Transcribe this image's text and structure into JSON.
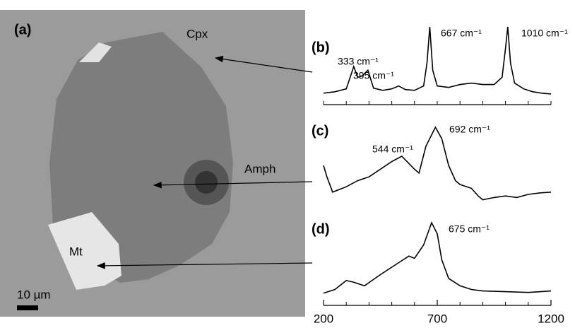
{
  "image": {
    "panel_label": "(a)",
    "labels": [
      "Cpx",
      "Amph",
      "Mt"
    ],
    "scale_bar": "10 µm"
  },
  "chart_data": [
    {
      "type": "line",
      "panel_label": "(b)",
      "xlim": [
        200,
        1200
      ],
      "ylim": [
        0,
        100
      ],
      "x": [
        200,
        250,
        300,
        333,
        350,
        370,
        395,
        420,
        460,
        500,
        530,
        560,
        600,
        640,
        655,
        667,
        680,
        700,
        750,
        800,
        850,
        900,
        950,
        985,
        1000,
        1010,
        1022,
        1040,
        1080,
        1120,
        1160,
        1200
      ],
      "values": [
        8,
        10,
        14,
        45,
        30,
        32,
        40,
        15,
        12,
        14,
        18,
        13,
        12,
        18,
        50,
        100,
        40,
        18,
        16,
        20,
        22,
        20,
        20,
        30,
        70,
        100,
        50,
        22,
        14,
        10,
        8,
        7
      ],
      "color": "#000000",
      "annotations": [
        {
          "text": "333 cm⁻¹",
          "x": 333
        },
        {
          "text": "395 cm⁻¹",
          "x": 395
        },
        {
          "text": "667 cm⁻¹",
          "x": 667
        },
        {
          "text": "1010 cm⁻¹",
          "x": 1010
        }
      ]
    },
    {
      "type": "line",
      "panel_label": "(c)",
      "xlim": [
        200,
        1200
      ],
      "ylim": [
        0,
        100
      ],
      "x": [
        200,
        215,
        240,
        300,
        350,
        400,
        500,
        544,
        600,
        620,
        650,
        692,
        720,
        750,
        780,
        800,
        850,
        880,
        900,
        950,
        1000,
        1050,
        1100,
        1150,
        1200
      ],
      "values": [
        50,
        35,
        15,
        22,
        30,
        35,
        55,
        62,
        45,
        40,
        75,
        100,
        85,
        50,
        30,
        25,
        20,
        10,
        5,
        8,
        10,
        8,
        12,
        14,
        15
      ],
      "color": "#000000",
      "annotations": [
        {
          "text": "544 cm⁻¹",
          "x": 544
        },
        {
          "text": "692 cm⁻¹",
          "x": 692
        }
      ]
    },
    {
      "type": "line",
      "panel_label": "(d)",
      "xlim": [
        200,
        1200
      ],
      "ylim": [
        0,
        100
      ],
      "x": [
        200,
        250,
        300,
        330,
        380,
        450,
        500,
        550,
        575,
        600,
        640,
        675,
        700,
        720,
        750,
        800,
        850,
        900,
        1000,
        1100,
        1200
      ],
      "values": [
        5,
        10,
        22,
        20,
        15,
        30,
        40,
        50,
        55,
        52,
        70,
        100,
        85,
        50,
        25,
        15,
        10,
        8,
        7,
        6,
        8
      ],
      "color": "#000000",
      "annotations": [
        {
          "text": "675 cm⁻¹",
          "x": 675
        }
      ],
      "xticks": [
        200,
        700,
        1200
      ]
    }
  ]
}
